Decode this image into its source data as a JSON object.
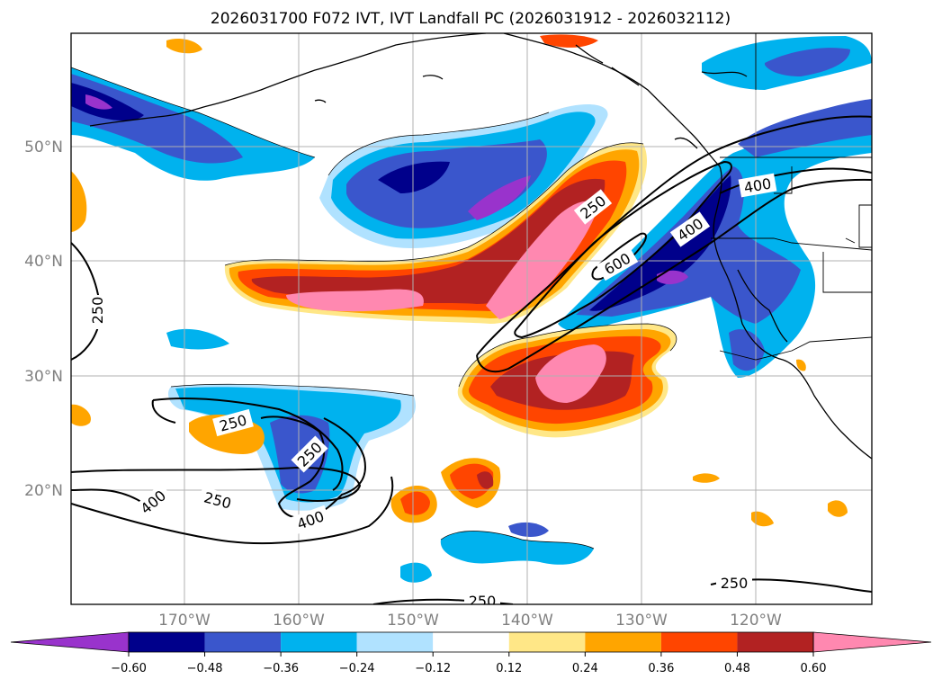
{
  "title": "2026031700 F072 IVT, IVT Landfall PC (2026031912 - 2026032112)",
  "lat_labels": [
    "50°N",
    "40°N",
    "30°N",
    "20°N"
  ],
  "lon_labels": [
    "170°W",
    "160°W",
    "150°W",
    "140°W",
    "130°W",
    "120°W"
  ],
  "colorbar": {
    "ticks": [
      "−0.60",
      "−0.48",
      "−0.36",
      "−0.24",
      "−0.12",
      "0.12",
      "0.24",
      "0.36",
      "0.48",
      "0.60"
    ],
    "colors": [
      "#9933cc",
      "#00008b",
      "#3a56cc",
      "#00b2ee",
      "#b0e2ff",
      "#ffffff",
      "#ffe787",
      "#ffa500",
      "#ff4500",
      "#b22222",
      "#ff88b0"
    ]
  },
  "contour_labels": [
    "250",
    "250",
    "250",
    "250",
    "250",
    "250",
    "250",
    "400",
    "400",
    "400",
    "400",
    "600"
  ]
}
